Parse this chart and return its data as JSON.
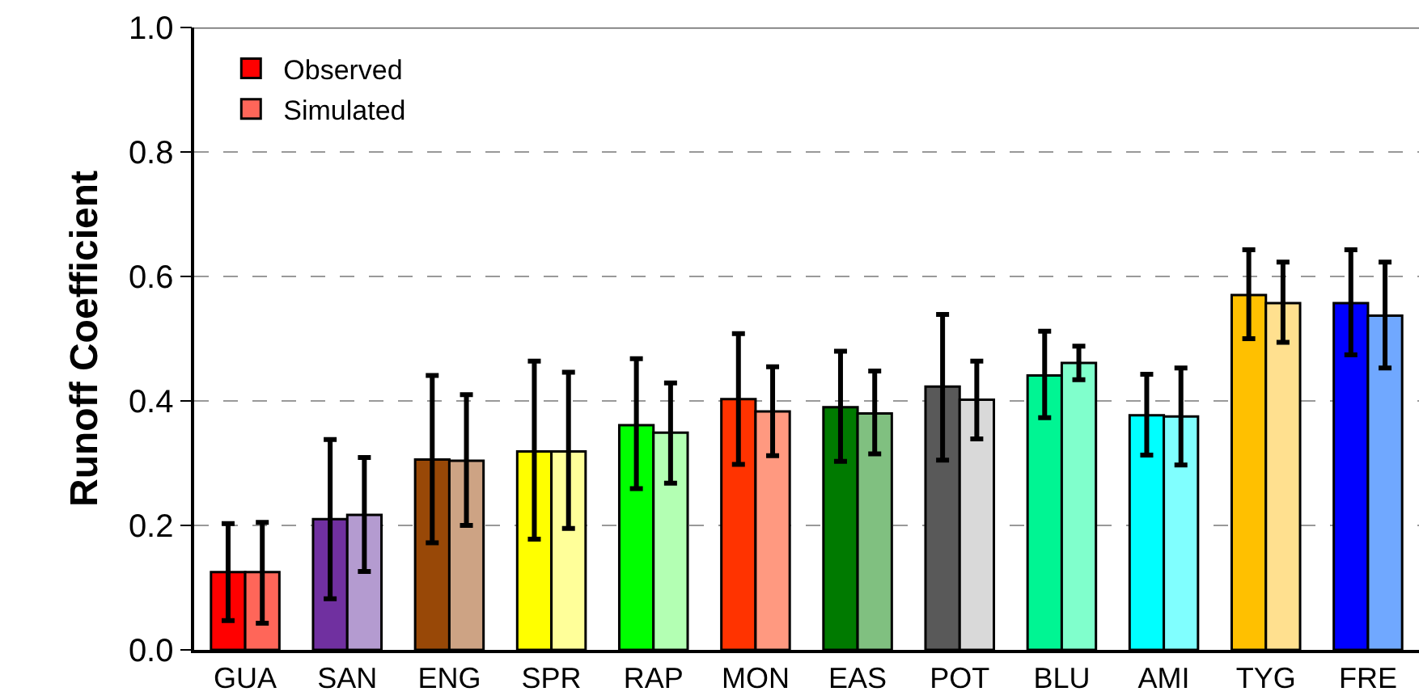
{
  "chart_data": {
    "type": "bar",
    "ylabel": "Runoff Coefficient",
    "categories": [
      "GUA",
      "SAN",
      "ENG",
      "SPR",
      "RAP",
      "MON",
      "EAS",
      "POT",
      "BLU",
      "AMI",
      "TYG",
      "FRE"
    ],
    "series": [
      {
        "name": "Observed",
        "values": [
          0.125,
          0.21,
          0.306,
          0.319,
          0.361,
          0.403,
          0.39,
          0.423,
          0.441,
          0.377,
          0.57,
          0.557
        ],
        "colors": [
          "#ff0000",
          "#7030a0",
          "#984807",
          "#ffff00",
          "#00ff00",
          "#ff3300",
          "#007a00",
          "#595959",
          "#00f593",
          "#00ffff",
          "#ffc000",
          "#0000ff"
        ],
        "errors": [
          [
            0.047,
            0.203
          ],
          [
            0.082,
            0.338
          ],
          [
            0.172,
            0.441
          ],
          [
            0.178,
            0.464
          ],
          [
            0.259,
            0.468
          ],
          [
            0.298,
            0.508
          ],
          [
            0.303,
            0.48
          ],
          [
            0.305,
            0.539
          ],
          [
            0.373,
            0.512
          ],
          [
            0.313,
            0.443
          ],
          [
            0.5,
            0.643
          ],
          [
            0.474,
            0.643
          ]
        ]
      },
      {
        "name": "Simulated",
        "values": [
          0.125,
          0.217,
          0.304,
          0.319,
          0.349,
          0.383,
          0.38,
          0.402,
          0.461,
          0.375,
          0.557,
          0.537
        ],
        "colors": [
          "#ff6659",
          "#b49bd0",
          "#cda384",
          "#ffff99",
          "#b3ffb3",
          "#ff9980",
          "#80c080",
          "#d9d9d9",
          "#80ffcc",
          "#80ffff",
          "#ffe08f",
          "#70a8ff"
        ],
        "errors": [
          [
            0.043,
            0.205
          ],
          [
            0.126,
            0.309
          ],
          [
            0.2,
            0.41
          ],
          [
            0.195,
            0.446
          ],
          [
            0.268,
            0.429
          ],
          [
            0.312,
            0.455
          ],
          [
            0.315,
            0.448
          ],
          [
            0.339,
            0.464
          ],
          [
            0.434,
            0.488
          ],
          [
            0.297,
            0.453
          ],
          [
            0.494,
            0.623
          ],
          [
            0.453,
            0.623
          ]
        ]
      }
    ],
    "ylim": [
      0,
      1
    ],
    "yticks": [
      {
        "value": 0,
        "label": "0.0"
      },
      {
        "value": 0.2,
        "label": "0.2"
      },
      {
        "value": 0.4,
        "label": "0.4"
      },
      {
        "value": 0.6,
        "label": "0.6"
      },
      {
        "value": 0.8,
        "label": "0.8"
      },
      {
        "value": 1,
        "label": "1.0"
      }
    ],
    "grid": "y",
    "legend": "top left"
  }
}
